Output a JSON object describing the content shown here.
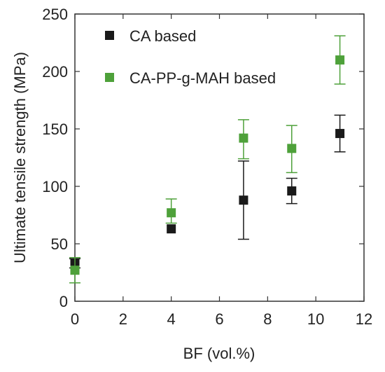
{
  "chart_data": {
    "type": "scatter",
    "xlabel": "BF (vol.%)",
    "ylabel": "Ultimate tensile strength (MPa)",
    "xlim": [
      0,
      12
    ],
    "ylim": [
      0,
      250
    ],
    "xticks": [
      "0",
      "2",
      "4",
      "6",
      "8",
      "10",
      "12"
    ],
    "yticks": [
      "0",
      "50",
      "100",
      "150",
      "200",
      "250"
    ],
    "x_tick_values": [
      0,
      2,
      4,
      6,
      8,
      10,
      12
    ],
    "y_tick_values": [
      0,
      50,
      100,
      150,
      200,
      250
    ],
    "grid": false,
    "legend_position": "top-left",
    "series": [
      {
        "name": "CA based",
        "color": "#1a1a1a",
        "marker": "square",
        "points": [
          {
            "x": 0,
            "y": 33,
            "err_low": 29,
            "err_high": 37
          },
          {
            "x": 4,
            "y": 63,
            "err_low": 63,
            "err_high": 63
          },
          {
            "x": 7,
            "y": 88,
            "err_low": 54,
            "err_high": 122
          },
          {
            "x": 9,
            "y": 96,
            "err_low": 85,
            "err_high": 107
          },
          {
            "x": 11,
            "y": 146,
            "err_low": 130,
            "err_high": 162
          }
        ]
      },
      {
        "name": "CA-PP-g-MAH based",
        "color": "#4ea13a",
        "marker": "square",
        "points": [
          {
            "x": 0,
            "y": 27,
            "err_low": 16,
            "err_high": 38
          },
          {
            "x": 4,
            "y": 77,
            "err_low": 68,
            "err_high": 89
          },
          {
            "x": 7,
            "y": 142,
            "err_low": 124,
            "err_high": 158
          },
          {
            "x": 9,
            "y": 133,
            "err_low": 112,
            "err_high": 153
          },
          {
            "x": 11,
            "y": 210,
            "err_low": 189,
            "err_high": 231
          }
        ]
      }
    ]
  }
}
